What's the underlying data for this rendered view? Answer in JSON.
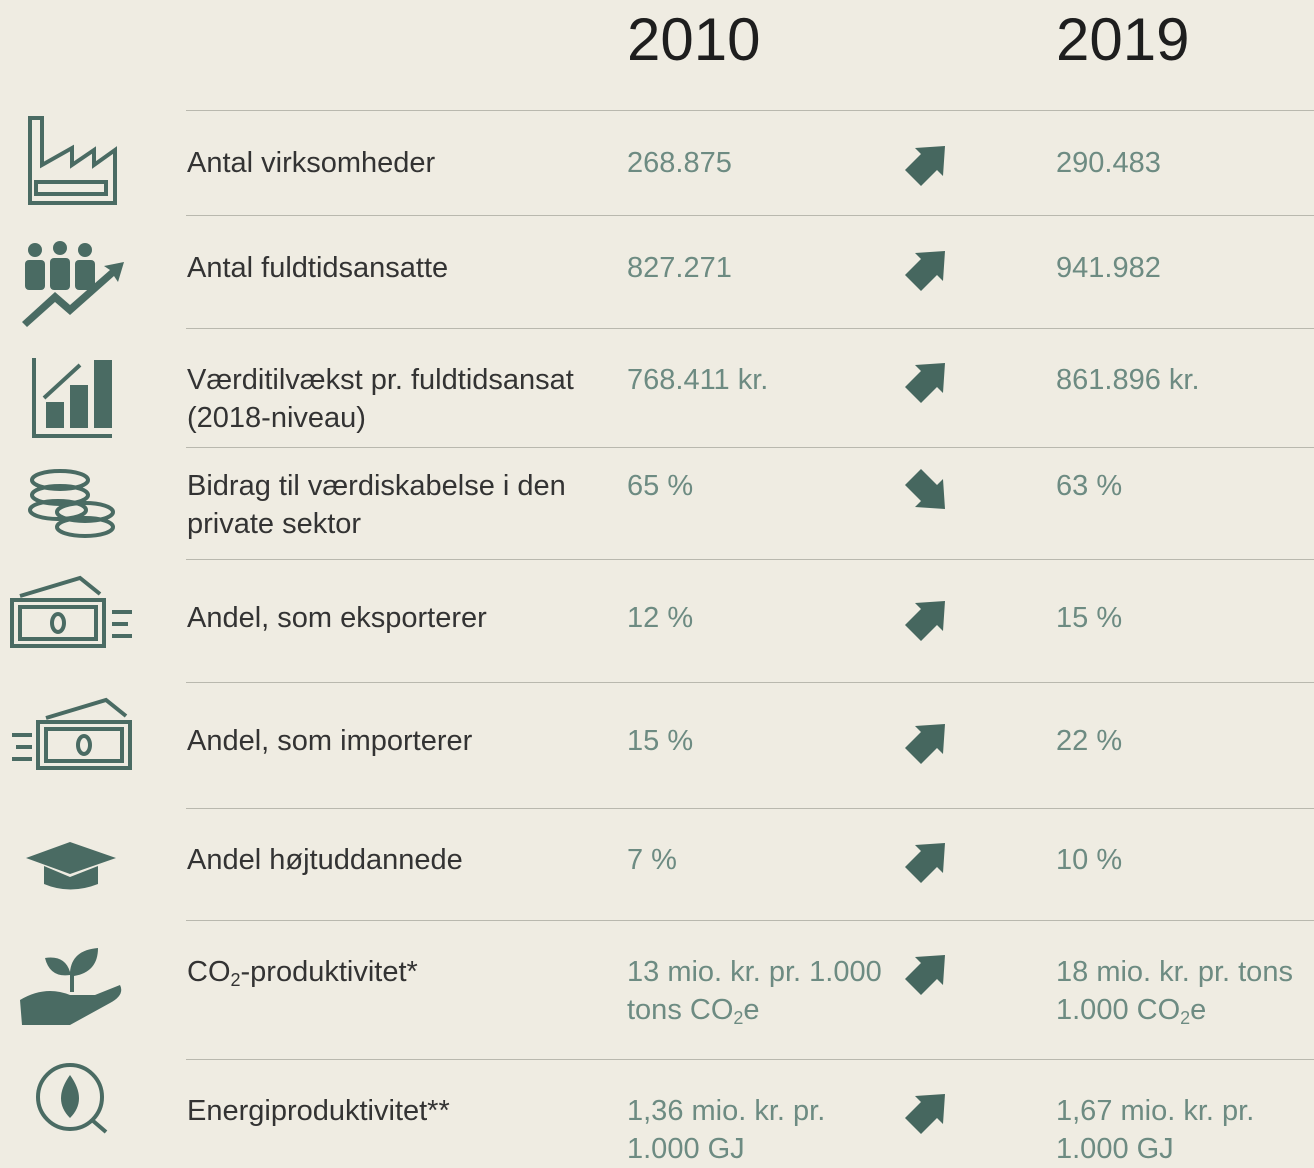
{
  "header": {
    "years": [
      "2010",
      "2019"
    ]
  },
  "rows": [
    {
      "label": [
        "Antal virksomheder"
      ],
      "v2010": [
        "268.875"
      ],
      "arrow": "up",
      "v2019": [
        "290.483"
      ]
    },
    {
      "label": [
        "Antal fuldtidsansatte"
      ],
      "v2010": [
        "827.271"
      ],
      "arrow": "up",
      "v2019": [
        "941.982"
      ]
    },
    {
      "label": [
        "Værditilvækst pr. fuldtidsansat",
        "(2018-niveau)"
      ],
      "v2010": [
        "768.411 kr."
      ],
      "arrow": "up",
      "v2019": [
        "861.896 kr."
      ]
    },
    {
      "label": [
        "Bidrag til værdiskabelse i den",
        "private sektor"
      ],
      "v2010": [
        "65 %"
      ],
      "arrow": "down",
      "v2019": [
        "63 %"
      ]
    },
    {
      "label": [
        "Andel, som eksporterer"
      ],
      "v2010": [
        "12 %"
      ],
      "arrow": "up",
      "v2019": [
        "15 %"
      ]
    },
    {
      "label": [
        "Andel, som importerer"
      ],
      "v2010": [
        "15 %"
      ],
      "arrow": "up",
      "v2019": [
        "22 %"
      ]
    },
    {
      "label": [
        "Andel højtuddannede"
      ],
      "v2010": [
        "7 %"
      ],
      "arrow": "up",
      "v2019": [
        "10 %"
      ]
    },
    {
      "label": [
        [
          "CO",
          "2",
          "-produktivitet*"
        ]
      ],
      "v2010": [
        "13 mio. kr. pr. 1.000",
        [
          "tons CO",
          "2",
          "e"
        ]
      ],
      "arrow": "up",
      "v2019": [
        "18 mio. kr. pr. tons",
        [
          "1.000 CO",
          "2",
          "e"
        ]
      ]
    },
    {
      "label": [
        "Energiproduktivitet**"
      ],
      "v2010": [
        "1,36 mio. kr. pr.",
        "1.000 GJ"
      ],
      "arrow": "up",
      "v2019": [
        "1,67 mio. kr. pr.",
        "1.000 GJ"
      ]
    }
  ]
}
